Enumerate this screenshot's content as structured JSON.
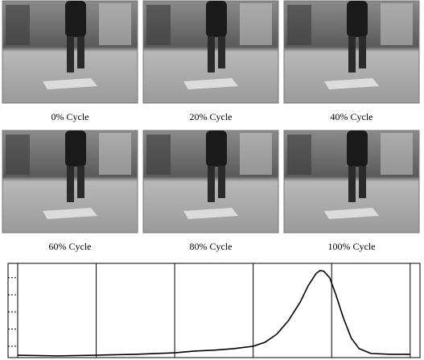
{
  "panels": [
    {
      "caption": "0% Cycle"
    },
    {
      "caption": "20% Cycle"
    },
    {
      "caption": "40% Cycle"
    },
    {
      "caption": "60% Cycle"
    },
    {
      "caption": "80% Cycle"
    },
    {
      "caption": "100% Cycle"
    }
  ],
  "chart_data": {
    "type": "line",
    "x": [
      0,
      10,
      20,
      30,
      40,
      45,
      50,
      55,
      60,
      63,
      66,
      69,
      72,
      74,
      76,
      77,
      78,
      79.5,
      81,
      83,
      85,
      87,
      90,
      95,
      100
    ],
    "series": [
      {
        "color": "#000000",
        "values": [
          -0.52,
          -0.56,
          -0.52,
          -0.47,
          -0.38,
          -0.28,
          -0.23,
          -0.14,
          0,
          0.23,
          0.7,
          1.5,
          2.58,
          3.52,
          4.23,
          4.41,
          4.37,
          3.99,
          3.05,
          1.64,
          0.47,
          -0.14,
          -0.42,
          -0.47,
          -0.47
        ]
      }
    ],
    "xlim": [
      -2.46,
      102.5
    ],
    "xticks": [
      0,
      20,
      40,
      60,
      80,
      100
    ],
    "ylim": [
      -0.66,
      4.83
    ],
    "yticks": [
      0,
      1,
      2,
      3,
      4
    ],
    "grid": true
  }
}
